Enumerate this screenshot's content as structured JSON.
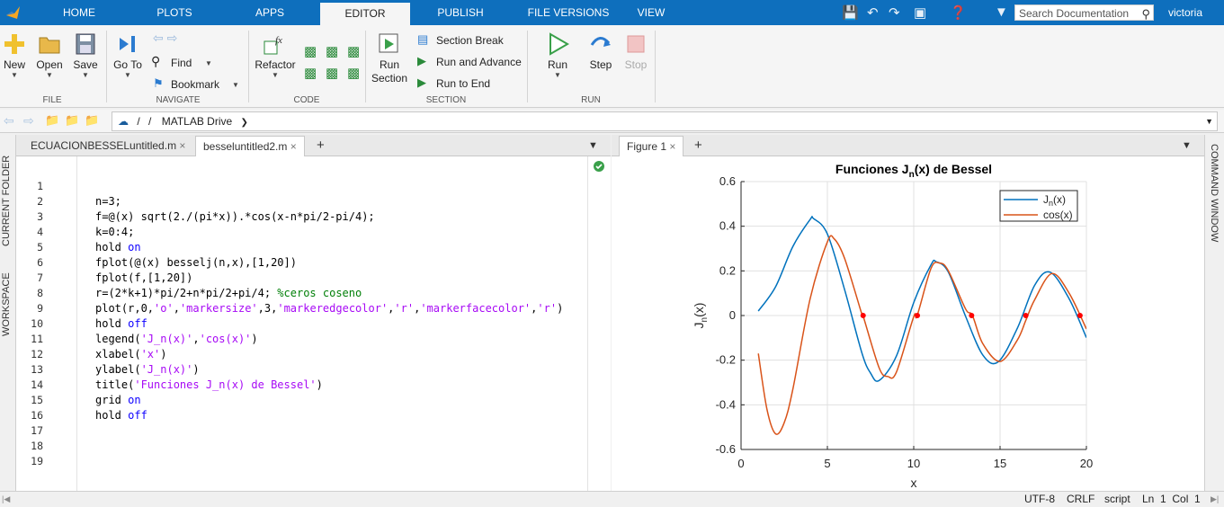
{
  "topbar": {
    "tabs": [
      "HOME",
      "PLOTS",
      "APPS",
      "EDITOR",
      "PUBLISH",
      "FILE VERSIONS",
      "VIEW"
    ],
    "active_tab": "EDITOR",
    "search_placeholder": "Search Documentation",
    "user": "victoria"
  },
  "ribbon": {
    "file": {
      "new": "New",
      "open": "Open",
      "save": "Save",
      "group": "FILE"
    },
    "navigate": {
      "goto": "Go To",
      "find": "Find",
      "bookmark": "Bookmark",
      "group": "NAVIGATE"
    },
    "code": {
      "refactor": "Refactor",
      "group": "CODE"
    },
    "section": {
      "run_section": "Run Section",
      "section_break": "Section Break",
      "run_advance": "Run and Advance",
      "run_end": "Run to End",
      "group": "SECTION"
    },
    "run": {
      "run": "Run",
      "step": "Step",
      "stop": "Stop",
      "group": "RUN"
    }
  },
  "address": {
    "sep": "/",
    "path": "MATLAB Drive"
  },
  "side": {
    "left_top": "CURRENT FOLDER",
    "left_bottom": "WORKSPACE",
    "right": "COMMAND WINDOW"
  },
  "editor": {
    "tabs": [
      "ECUACIONBESSELuntitled.m",
      "besseluntitled2.m"
    ],
    "active_tab": "besseluntitled2.m",
    "line_numbers": [
      "1",
      "2",
      "3",
      "4",
      "5",
      "6",
      "7",
      "8",
      "9",
      "10",
      "11",
      "12",
      "13",
      "14",
      "15",
      "16",
      "17",
      "18",
      "19"
    ],
    "lines": [
      [],
      [
        {
          "t": "n=3;",
          "c": ""
        }
      ],
      [
        {
          "t": "f=@(x) sqrt(2./(pi*x)).*cos(x-n*pi/2-pi/4);",
          "c": ""
        }
      ],
      [
        {
          "t": "k=0:4;",
          "c": ""
        }
      ],
      [
        {
          "t": "hold ",
          "c": ""
        },
        {
          "t": "on",
          "c": "kw"
        }
      ],
      [
        {
          "t": "fplot(@(x) besselj(n,x),[1,20])",
          "c": ""
        }
      ],
      [
        {
          "t": "fplot(f,[1,20])",
          "c": ""
        }
      ],
      [
        {
          "t": "r=(2*k+1)*pi/2+n*pi/2+pi/4; ",
          "c": ""
        },
        {
          "t": "%ceros coseno",
          "c": "cm"
        }
      ],
      [
        {
          "t": "plot(r,0,",
          "c": ""
        },
        {
          "t": "'o'",
          "c": "str"
        },
        {
          "t": ",",
          "c": ""
        },
        {
          "t": "'markersize'",
          "c": "str"
        },
        {
          "t": ",3,",
          "c": ""
        },
        {
          "t": "'markeredgecolor'",
          "c": "str"
        },
        {
          "t": ",",
          "c": ""
        },
        {
          "t": "'r'",
          "c": "str"
        },
        {
          "t": ",",
          "c": ""
        },
        {
          "t": "'markerfacecolor'",
          "c": "str"
        },
        {
          "t": ",",
          "c": ""
        },
        {
          "t": "'r'",
          "c": "str"
        },
        {
          "t": ")",
          "c": ""
        }
      ],
      [
        {
          "t": "hold ",
          "c": ""
        },
        {
          "t": "off",
          "c": "kw"
        }
      ],
      [
        {
          "t": "legend(",
          "c": ""
        },
        {
          "t": "'J_n(x)'",
          "c": "str"
        },
        {
          "t": ",",
          "c": ""
        },
        {
          "t": "'cos(x)'",
          "c": "str"
        },
        {
          "t": ")",
          "c": ""
        }
      ],
      [
        {
          "t": "xlabel(",
          "c": ""
        },
        {
          "t": "'x'",
          "c": "str"
        },
        {
          "t": ")",
          "c": ""
        }
      ],
      [
        {
          "t": "ylabel(",
          "c": ""
        },
        {
          "t": "'J_n(x)'",
          "c": "str"
        },
        {
          "t": ")",
          "c": ""
        }
      ],
      [
        {
          "t": "title(",
          "c": ""
        },
        {
          "t": "'Funciones J_n(x) de Bessel'",
          "c": "str"
        },
        {
          "t": ")",
          "c": ""
        }
      ],
      [
        {
          "t": "grid ",
          "c": ""
        },
        {
          "t": "on",
          "c": "kw"
        }
      ],
      [
        {
          "t": "hold ",
          "c": ""
        },
        {
          "t": "off",
          "c": "kw"
        }
      ],
      [],
      [],
      []
    ]
  },
  "figure": {
    "tab": "Figure 1"
  },
  "chart_data": {
    "type": "line",
    "title_pre": "Funciones J",
    "title_sub": "n",
    "title_post": "(x)  de  Bessel",
    "xlabel": "x",
    "ylabel_pre": "J",
    "ylabel_sub": "n",
    "ylabel_post": "(x)",
    "xlim": [
      0,
      20
    ],
    "ylim": [
      -0.6,
      0.6
    ],
    "xticks": [
      "0",
      "5",
      "10",
      "15",
      "20"
    ],
    "yticks": [
      "-0.6",
      "-0.4",
      "-0.2",
      "0",
      "0.2",
      "0.4",
      "0.6"
    ],
    "grid": true,
    "legend_position": "top-right",
    "series": [
      {
        "name_pre": "J",
        "name_sub": "n",
        "name_post": "(x)",
        "color": "#0072bd",
        "x": [
          1,
          2,
          3,
          4,
          4.2,
          5,
          6,
          7,
          7.5,
          8,
          9,
          10,
          11,
          11.3,
          12,
          13,
          14,
          14.9,
          16,
          17,
          17.9,
          19,
          20
        ],
        "y": [
          0.02,
          0.129,
          0.309,
          0.43,
          0.434,
          0.365,
          0.115,
          -0.168,
          -0.258,
          -0.291,
          -0.181,
          0.058,
          0.227,
          0.241,
          0.195,
          -0.003,
          -0.177,
          -0.207,
          -0.057,
          0.135,
          0.194,
          0.075,
          -0.099
        ]
      },
      {
        "name": "cos(x)",
        "color": "#d95319",
        "x": [
          1,
          1.5,
          2,
          2.5,
          3,
          4,
          5,
          5.4,
          6,
          7,
          7.07,
          8,
          8.5,
          9,
          10,
          10.2,
          11,
          11.5,
          12,
          13,
          13.4,
          14,
          15,
          16,
          16.5,
          17,
          18,
          19,
          20
        ],
        "y": [
          -0.17,
          -0.42,
          -0.53,
          -0.48,
          -0.33,
          0.075,
          0.33,
          0.343,
          0.255,
          0.005,
          -0.002,
          -0.235,
          -0.273,
          -0.253,
          -0.005,
          0.0,
          0.211,
          0.235,
          0.201,
          0.03,
          0.0,
          -0.126,
          -0.206,
          -0.11,
          -0.02,
          0.07,
          0.188,
          0.1,
          -0.06
        ]
      }
    ],
    "markers": {
      "x": [
        7.07,
        10.21,
        13.35,
        16.49,
        19.63
      ],
      "y": [
        0,
        0,
        0,
        0,
        0
      ],
      "color": "#ff0000"
    }
  },
  "status": {
    "encoding": "UTF-8",
    "eol": "CRLF",
    "type": "script",
    "pos": "Ln  1  Col  1"
  }
}
